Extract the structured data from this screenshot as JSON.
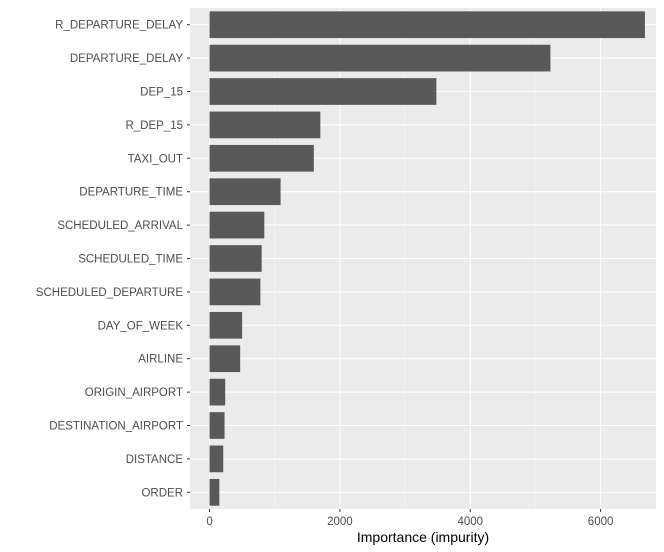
{
  "chart_data": {
    "type": "bar",
    "orientation": "horizontal",
    "title": "",
    "xlabel": "Importance (impurity)",
    "ylabel": "",
    "xlim": [
      -300,
      6850
    ],
    "xticks": [
      0,
      2000,
      4000,
      6000
    ],
    "xtick_labels": [
      "0",
      "2000",
      "4000",
      "6000"
    ],
    "grid": true,
    "legend": "none",
    "categories": [
      "R_DEPARTURE_DELAY",
      "DEPARTURE_DELAY",
      "DEP_15",
      "R_DEP_15",
      "TAXI_OUT",
      "DEPARTURE_TIME",
      "SCHEDULED_ARRIVAL",
      "SCHEDULED_TIME",
      "SCHEDULED_DEPARTURE",
      "DAY_OF_WEEK",
      "AIRLINE",
      "ORIGIN_AIRPORT",
      "DESTINATION_AIRPORT",
      "DISTANCE",
      "ORDER"
    ],
    "values": [
      6680,
      5230,
      3480,
      1700,
      1600,
      1090,
      840,
      800,
      780,
      500,
      470,
      240,
      230,
      210,
      150
    ],
    "colors": {
      "bar": "#595959",
      "panel": "#ebebeb",
      "grid_major": "#ffffff",
      "grid_minor": "#f5f5f5",
      "tick_text": "#4d4d4d",
      "tick_mark": "#333333"
    }
  }
}
